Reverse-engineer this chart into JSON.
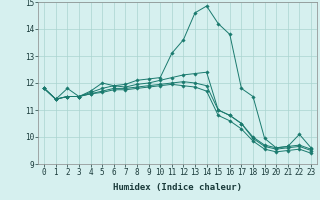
{
  "xlabel": "Humidex (Indice chaleur)",
  "x_values": [
    0,
    1,
    2,
    3,
    4,
    5,
    6,
    7,
    8,
    9,
    10,
    11,
    12,
    13,
    14,
    15,
    16,
    17,
    18,
    19,
    20,
    21,
    22,
    23
  ],
  "series": [
    [
      11.8,
      11.4,
      11.8,
      11.5,
      11.7,
      12.0,
      11.9,
      11.95,
      12.1,
      12.15,
      12.2,
      13.1,
      13.6,
      14.6,
      14.85,
      14.2,
      13.8,
      11.8,
      11.5,
      9.95,
      9.6,
      9.65,
      10.1,
      9.6
    ],
    [
      11.8,
      11.4,
      11.5,
      11.5,
      11.65,
      11.8,
      11.9,
      11.85,
      11.95,
      12.0,
      12.1,
      12.2,
      12.3,
      12.35,
      12.4,
      11.0,
      10.8,
      10.5,
      10.0,
      9.7,
      9.6,
      9.65,
      9.7,
      9.55
    ],
    [
      11.8,
      11.4,
      11.5,
      11.5,
      11.6,
      11.7,
      11.8,
      11.8,
      11.85,
      11.9,
      11.95,
      12.0,
      12.05,
      12.0,
      11.9,
      11.0,
      10.8,
      10.5,
      9.95,
      9.65,
      9.55,
      9.6,
      9.65,
      9.5
    ],
    [
      11.8,
      11.4,
      11.5,
      11.5,
      11.6,
      11.65,
      11.75,
      11.75,
      11.8,
      11.85,
      11.9,
      11.95,
      11.9,
      11.85,
      11.7,
      10.8,
      10.6,
      10.3,
      9.85,
      9.55,
      9.45,
      9.5,
      9.55,
      9.4
    ]
  ],
  "line_color": "#1a7a6e",
  "bg_color": "#d6f0ef",
  "grid_color": "#aad4d0",
  "ylim": [
    9.0,
    15.0
  ],
  "yticks": [
    9,
    10,
    11,
    12,
    13,
    14,
    15
  ],
  "xtick_labels": [
    "0",
    "1",
    "2",
    "3",
    "4",
    "5",
    "6",
    "7",
    "8",
    "9",
    "10",
    "11",
    "12",
    "13",
    "14",
    "15",
    "16",
    "17",
    "18",
    "19",
    "20",
    "21",
    "22",
    "23"
  ],
  "axis_fontsize": 6.5,
  "tick_fontsize": 5.5
}
